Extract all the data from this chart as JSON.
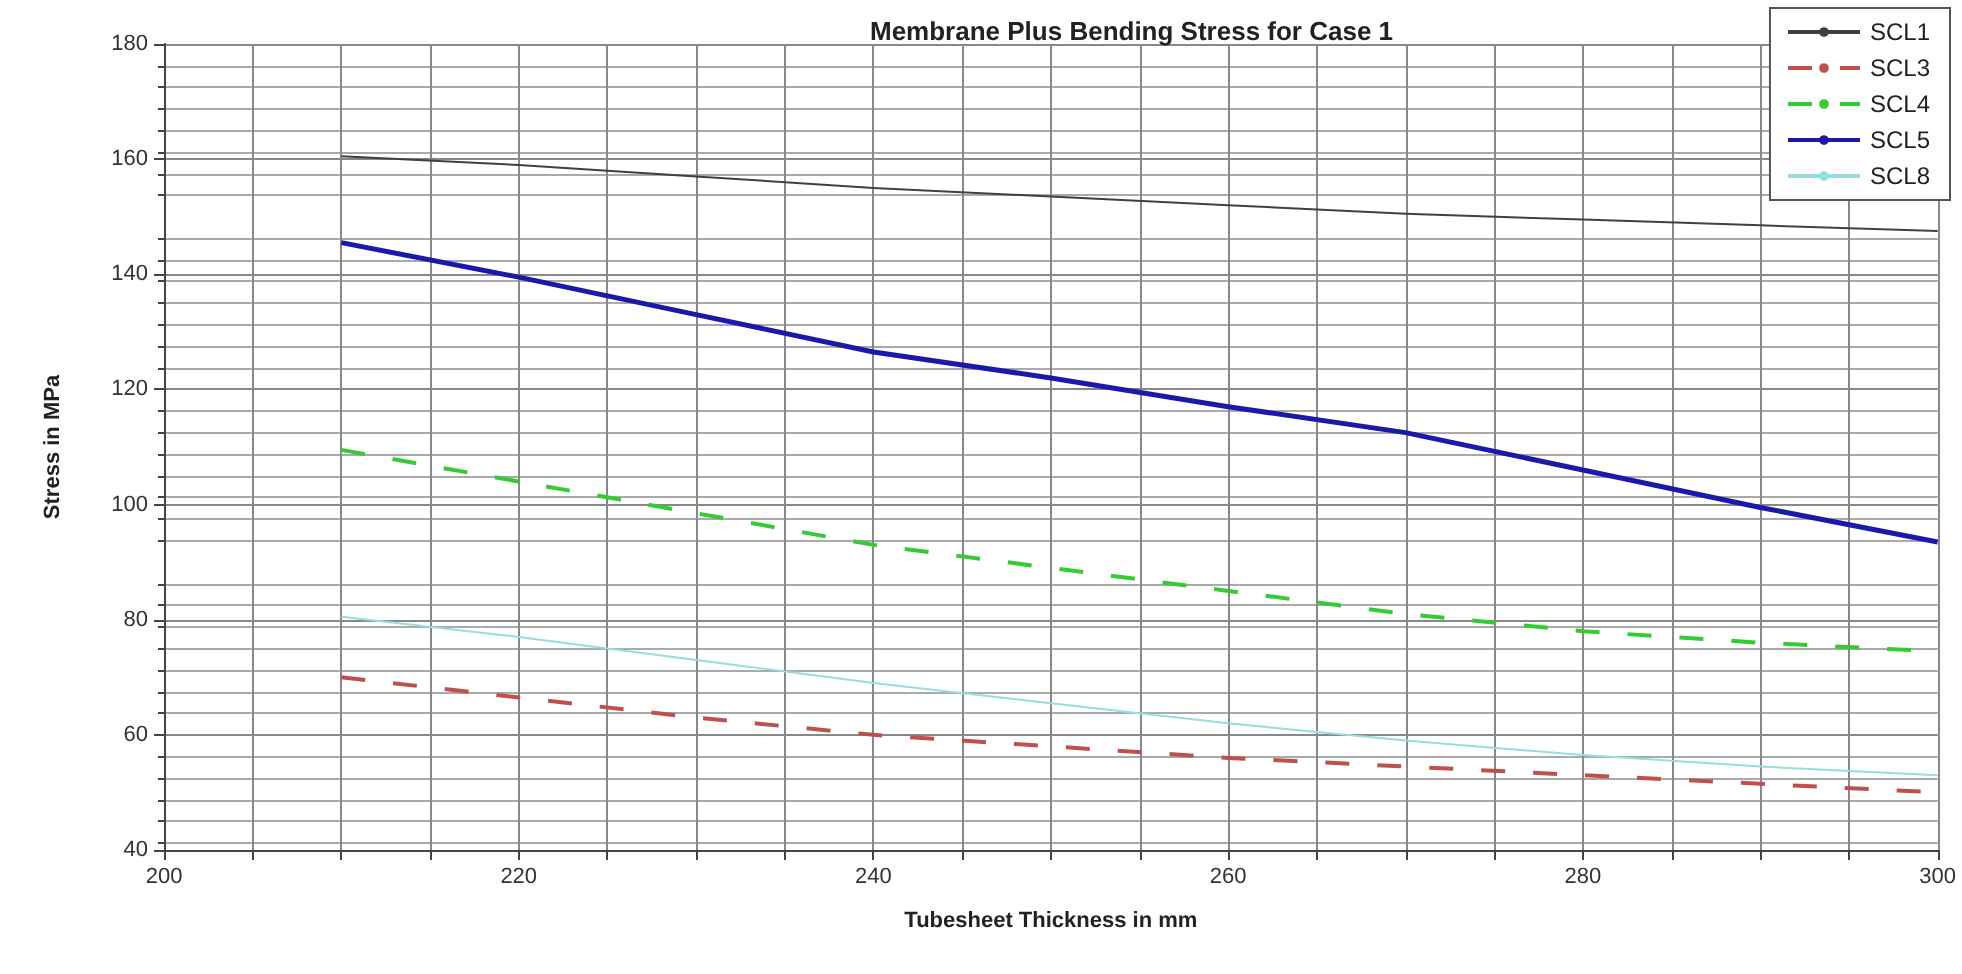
{
  "chart_data": {
    "type": "line",
    "title": "Membrane Plus Bending Stress for Case 1",
    "xlabel": "Tubesheet Thickness in mm",
    "ylabel": "Stress in MPa",
    "x": [
      210,
      220,
      230,
      240,
      250,
      260,
      270,
      280,
      290,
      300
    ],
    "series": [
      {
        "name": "SCL1",
        "color": "#404040",
        "line_style": "solid",
        "values": [
          160.5,
          159,
          157,
          155,
          153.5,
          152,
          150.5,
          149.5,
          148.5,
          147.5
        ]
      },
      {
        "name": "SCL3",
        "color": "#c0504d",
        "line_style": "dashed",
        "values": [
          70,
          66.5,
          63,
          60,
          58,
          56,
          54.5,
          53,
          51.5,
          50
        ]
      },
      {
        "name": "SCL4",
        "color": "#33cc33",
        "line_style": "dashed",
        "values": [
          109.5,
          104,
          98.5,
          93,
          89,
          85,
          81,
          78,
          76,
          74.5
        ]
      },
      {
        "name": "SCL5",
        "color": "#1a1aaa",
        "line_style": "solid",
        "values": [
          145.5,
          139.5,
          133,
          126.5,
          122,
          117,
          112.5,
          106,
          99.5,
          93.5
        ]
      },
      {
        "name": "SCL8",
        "color": "#99dddd",
        "line_style": "solid",
        "values": [
          80.5,
          77,
          73,
          69,
          65.5,
          62,
          59,
          56.5,
          54.5,
          53
        ]
      }
    ],
    "xlim": [
      200,
      300
    ],
    "xticks": [
      200,
      {
        "value": 205,
        "label": null
      },
      {
        "value": 210,
        "label": null
      },
      {
        "value": 215,
        "label": null
      },
      220,
      {
        "value": 225,
        "label": null
      },
      {
        "value": 230,
        "label": null
      },
      {
        "value": 235,
        "label": null
      },
      240,
      {
        "value": 245,
        "label": null
      },
      {
        "value": 250,
        "label": null
      },
      {
        "value": 255,
        "label": null
      },
      260,
      {
        "value": 265,
        "label": null
      },
      {
        "value": 270,
        "label": null
      },
      {
        "value": 275,
        "label": null
      },
      280,
      {
        "value": 285,
        "label": null
      },
      {
        "value": 290,
        "label": null
      },
      {
        "value": 295,
        "label": null
      },
      300
    ],
    "ylim": [
      40,
      180
    ],
    "yticks": [
      40,
      60,
      80,
      100,
      120,
      140,
      160,
      180
    ],
    "grid": true,
    "legend": "top right",
    "marker": "none"
  }
}
